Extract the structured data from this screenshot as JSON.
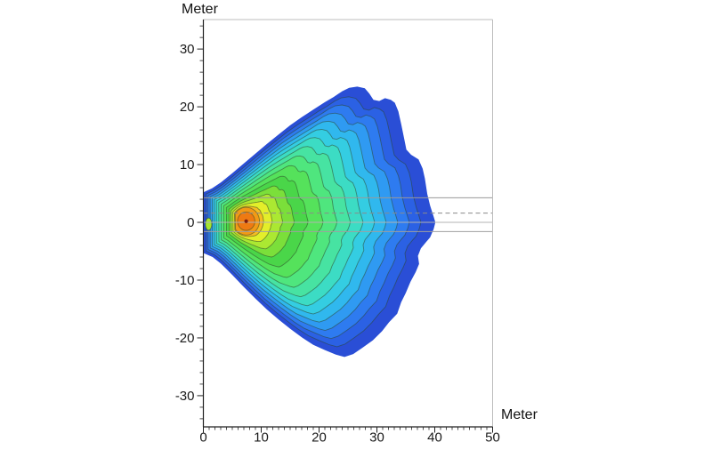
{
  "page": {
    "background": "#ffffff"
  },
  "labels": {
    "x_axis_title": "Meter",
    "y_axis_title": "Meter"
  },
  "chart_data": {
    "type": "heatmap",
    "subtype": "filled-contour-map",
    "title": "",
    "xlabel": "Meter",
    "ylabel": "Meter",
    "xlim": [
      0,
      50
    ],
    "ylim": [
      -35.4,
      35.1
    ],
    "x_major_ticks": [
      0,
      10,
      20,
      30,
      40,
      50
    ],
    "x_minor_step": 1,
    "y_major_ticks": [
      -30,
      -20,
      -10,
      0,
      10,
      20,
      30
    ],
    "y_minor_step": 2,
    "grid": false,
    "legend": false,
    "axis_color": "#222222",
    "frame_color": "#bcbcbc",
    "contour_line_color": "rgba(45,70,40,0.55)",
    "hotspot": {
      "cx": 7.4,
      "cy": 0.2,
      "rx": 2.3,
      "ry": 2.4,
      "core_rx": 1.5,
      "core_ry": 1.6,
      "core_color": "#ee7a12"
    },
    "source_marker": {
      "x": 7.4,
      "y": 0.2,
      "radius_px": 2.1,
      "color": "#7c1d10"
    },
    "island": {
      "cx": 0.9,
      "cy": -0.3,
      "rx": 0.55,
      "ry": 1.05,
      "fill": "#a5e52f"
    },
    "reference_lines": [
      {
        "y": 4.25,
        "style": "solid",
        "color": "#9a9a9a"
      },
      {
        "y": 1.6,
        "style": "dashed",
        "color": "#8a8a8a"
      },
      {
        "y": 0.0,
        "style": "solid",
        "color": "#b3b3b3"
      },
      {
        "y": -1.6,
        "style": "solid",
        "color": "#9f9f9f"
      }
    ],
    "outer_boundary": [
      [
        0,
        5.2
      ],
      [
        1.5,
        5.9
      ],
      [
        3,
        6.9
      ],
      [
        5,
        8.5
      ],
      [
        7,
        10.2
      ],
      [
        9,
        11.9
      ],
      [
        11,
        13.6
      ],
      [
        13,
        15.2
      ],
      [
        15,
        16.8
      ],
      [
        17,
        18.2
      ],
      [
        19,
        19.5
      ],
      [
        21,
        20.8
      ],
      [
        22.5,
        21.7
      ],
      [
        24,
        22.7
      ],
      [
        25.2,
        23.3
      ],
      [
        26.6,
        23.5
      ],
      [
        27.9,
        23.2
      ],
      [
        28.7,
        22.3
      ],
      [
        29.4,
        21.2
      ],
      [
        30.4,
        21.0
      ],
      [
        31.4,
        21.5
      ],
      [
        32.4,
        21.2
      ],
      [
        33.1,
        20.7
      ],
      [
        33.7,
        19.2
      ],
      [
        34.2,
        17.0
      ],
      [
        34.7,
        14.5
      ],
      [
        35.1,
        12.6
      ],
      [
        35.9,
        11.7
      ],
      [
        37.2,
        10.9
      ],
      [
        37.9,
        9.3
      ],
      [
        38.3,
        7.6
      ],
      [
        38.7,
        4.9
      ],
      [
        39.2,
        2.9
      ],
      [
        39.8,
        1.0
      ],
      [
        40.1,
        0.0
      ],
      [
        39.8,
        -1.2
      ],
      [
        39.2,
        -2.6
      ],
      [
        38.5,
        -3.4
      ],
      [
        37.6,
        -4.5
      ],
      [
        37.1,
        -5.8
      ],
      [
        37.3,
        -7.2
      ],
      [
        36.7,
        -8.6
      ],
      [
        35.8,
        -10.3
      ],
      [
        35.0,
        -12.2
      ],
      [
        34.2,
        -13.8
      ],
      [
        33.5,
        -15.8
      ],
      [
        32.1,
        -17.3
      ],
      [
        30.9,
        -18.8
      ],
      [
        29.3,
        -20.4
      ],
      [
        27.5,
        -21.7
      ],
      [
        25.9,
        -22.8
      ],
      [
        24.4,
        -23.3
      ],
      [
        22.9,
        -22.9
      ],
      [
        21.0,
        -22.1
      ],
      [
        19.0,
        -21.2
      ],
      [
        17.0,
        -19.9
      ],
      [
        15.0,
        -18.4
      ],
      [
        13.0,
        -16.8
      ],
      [
        11.0,
        -15.1
      ],
      [
        9.0,
        -13.2
      ],
      [
        7.0,
        -11.2
      ],
      [
        5.0,
        -9.1
      ],
      [
        3.0,
        -7.1
      ],
      [
        1.6,
        -6.0
      ],
      [
        0,
        -5.3
      ]
    ],
    "bands": [
      {
        "extent_right_m": 40.1,
        "color": "#2a4ed6"
      },
      {
        "extent_right_m": 37.6,
        "color": "#2b61e4"
      },
      {
        "extent_right_m": 35.6,
        "color": "#2e7bf0"
      },
      {
        "extent_right_m": 33.6,
        "color": "#2f9af2"
      },
      {
        "extent_right_m": 31.6,
        "color": "#30b8ee"
      },
      {
        "extent_right_m": 29.6,
        "color": "#34cde2"
      },
      {
        "extent_right_m": 27.6,
        "color": "#3cdcc4"
      },
      {
        "extent_right_m": 25.4,
        "color": "#47e3a2"
      },
      {
        "extent_right_m": 23.1,
        "color": "#4fe67e"
      },
      {
        "extent_right_m": 20.7,
        "color": "#55e25b"
      },
      {
        "extent_right_m": 18.1,
        "color": "#4ad649"
      },
      {
        "extent_right_m": 15.7,
        "color": "#7bdf3a"
      },
      {
        "extent_right_m": 13.7,
        "color": "#abe832"
      },
      {
        "extent_right_m": 11.9,
        "color": "#e3ee2a"
      },
      {
        "extent_right_m": 10.4,
        "color": "#f6bd22"
      },
      {
        "extent_right_m": 9.7,
        "color": "#f29a16"
      }
    ]
  }
}
